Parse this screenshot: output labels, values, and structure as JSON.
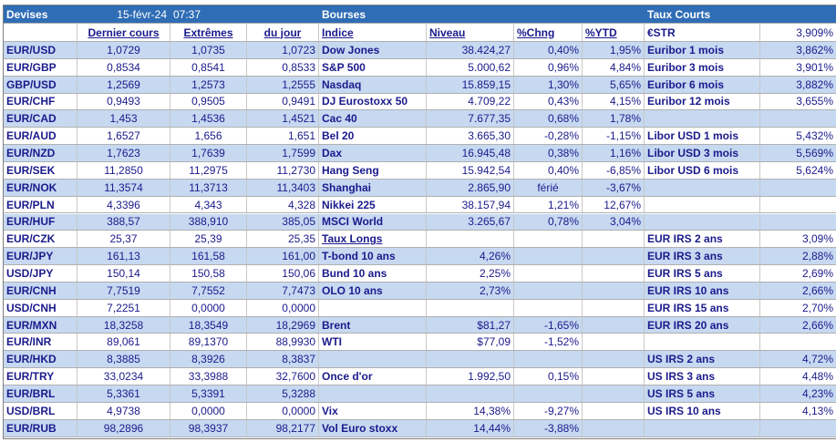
{
  "title_row": {
    "devises_label": "Devises",
    "date": "15-févr-24",
    "time": "07:37",
    "bourses_label": "Bourses",
    "taux_courts_label": "Taux Courts"
  },
  "headers": {
    "dernier_cours": "Dernier cours",
    "extremes": "Extrêmes",
    "du_jour": "du jour",
    "indice": "Indice",
    "niveau": "Niveau",
    "pct_chng": "%Chng",
    "pct_ytd": "%YTD",
    "estr_label": "€STR",
    "estr_value": "3,909%"
  },
  "rows": [
    {
      "pair": "EUR/USD",
      "last": "1,0729",
      "high": "1,0735",
      "low": "1,0723",
      "idx": "Dow Jones",
      "lvl": "38.424,27",
      "chg": "0,40%",
      "ytd": "1,95%",
      "rate": "Euribor 1 mois",
      "rval": "3,862%"
    },
    {
      "pair": "EUR/GBP",
      "last": "0,8534",
      "high": "0,8541",
      "low": "0,8533",
      "idx": "S&P 500",
      "lvl": "5.000,62",
      "chg": "0,96%",
      "ytd": "4,84%",
      "rate": "Euribor 3 mois",
      "rval": "3,901%"
    },
    {
      "pair": "GBP/USD",
      "last": "1,2569",
      "high": "1,2573",
      "low": "1,2555",
      "idx": "Nasdaq",
      "lvl": "15.859,15",
      "chg": "1,30%",
      "ytd": "5,65%",
      "rate": "Euribor 6 mois",
      "rval": "3,882%"
    },
    {
      "pair": "EUR/CHF",
      "last": "0,9493",
      "high": "0,9505",
      "low": "0,9491",
      "idx": "DJ Eurostoxx 50",
      "lvl": "4.709,22",
      "chg": "0,43%",
      "ytd": "4,15%",
      "rate": "Euribor 12 mois",
      "rval": "3,655%"
    },
    {
      "pair": "EUR/CAD",
      "last": "1,453",
      "high": "1,4536",
      "low": "1,4521",
      "idx": "Cac 40",
      "lvl": "7.677,35",
      "chg": "0,68%",
      "ytd": "1,78%",
      "rate": "",
      "rval": ""
    },
    {
      "pair": "EUR/AUD",
      "last": "1,6527",
      "high": "1,656",
      "low": "1,651",
      "idx": "Bel 20",
      "lvl": "3.665,30",
      "chg": "-0,28%",
      "ytd": "-1,15%",
      "rate": "Libor USD 1 mois",
      "rval": "5,432%"
    },
    {
      "pair": "EUR/NZD",
      "last": "1,7623",
      "high": "1,7639",
      "low": "1,7599",
      "idx": "Dax",
      "lvl": "16.945,48",
      "chg": "0,38%",
      "ytd": "1,16%",
      "rate": "Libor USD 3 mois",
      "rval": "5,569%"
    },
    {
      "pair": "EUR/SEK",
      "last": "11,2850",
      "high": "11,2975",
      "low": "11,2730",
      "idx": "Hang Seng",
      "lvl": "15.942,54",
      "chg": "0,40%",
      "ytd": "-6,85%",
      "rate": "Libor USD 6 mois",
      "rval": "5,624%"
    },
    {
      "pair": "EUR/NOK",
      "last": "11,3574",
      "high": "11,3713",
      "low": "11,3403",
      "idx": "Shanghai",
      "lvl": "2.865,90",
      "chg": "férié",
      "ytd": "-3,67%",
      "rate": "",
      "rval": ""
    },
    {
      "pair": "EUR/PLN",
      "last": "4,3396",
      "high": "4,343",
      "low": "4,328",
      "idx": "Nikkei 225",
      "lvl": "38.157,94",
      "chg": "1,21%",
      "ytd": "12,67%",
      "rate": "",
      "rval": ""
    },
    {
      "pair": "EUR/HUF",
      "last": "388,57",
      "high": "388,910",
      "low": "385,05",
      "idx": "MSCI World",
      "lvl": "3.265,67",
      "chg": "0,78%",
      "ytd": "3,04%",
      "rate": "",
      "rval": ""
    },
    {
      "pair": "EUR/CZK",
      "last": "25,37",
      "high": "25,39",
      "low": "25,35",
      "idx": "Taux Longs",
      "lvl": "",
      "chg": "",
      "ytd": "",
      "rate": "EUR IRS 2 ans",
      "rval": "3,09%"
    },
    {
      "pair": "EUR/JPY",
      "last": "161,13",
      "high": "161,58",
      "low": "161,00",
      "idx": "T-bond 10 ans",
      "lvl": "4,26%",
      "chg": "",
      "ytd": "",
      "rate": "EUR IRS 3 ans",
      "rval": "2,88%"
    },
    {
      "pair": "USD/JPY",
      "last": "150,14",
      "high": "150,58",
      "low": "150,06",
      "idx": "Bund 10 ans",
      "lvl": "2,25%",
      "chg": "",
      "ytd": "",
      "rate": "EUR IRS 5 ans",
      "rval": "2,69%"
    },
    {
      "pair": "EUR/CNH",
      "last": "7,7519",
      "high": "7,7552",
      "low": "7,7473",
      "idx": "OLO 10 ans",
      "lvl": "2,73%",
      "chg": "",
      "ytd": "",
      "rate": "EUR IRS 10 ans",
      "rval": "2,66%"
    },
    {
      "pair": "USD/CNH",
      "last": "7,2251",
      "high": "0,0000",
      "low": "0,0000",
      "idx": "",
      "lvl": "",
      "chg": "",
      "ytd": "",
      "rate": "EUR IRS 15 ans",
      "rval": "2,70%"
    },
    {
      "pair": "EUR/MXN",
      "last": "18,3258",
      "high": "18,3549",
      "low": "18,2969",
      "idx": "Brent",
      "lvl": "$81,27",
      "chg": "-1,65%",
      "ytd": "",
      "rate": "EUR IRS 20 ans",
      "rval": "2,66%"
    },
    {
      "pair": "EUR/INR",
      "last": "89,061",
      "high": "89,1370",
      "low": "88,9930",
      "idx": "WTI",
      "lvl": "$77,09",
      "chg": "-1,52%",
      "ytd": "",
      "rate": "",
      "rval": ""
    },
    {
      "pair": "EUR/HKD",
      "last": "8,3885",
      "high": "8,3926",
      "low": "8,3837",
      "idx": "",
      "lvl": "",
      "chg": "",
      "ytd": "",
      "rate": "US IRS 2 ans",
      "rval": "4,72%"
    },
    {
      "pair": "EUR/TRY",
      "last": "33,0234",
      "high": "33,3988",
      "low": "32,7600",
      "idx": "Once d'or",
      "lvl": "1.992,50",
      "chg": "0,15%",
      "ytd": "",
      "rate": "US IRS 3 ans",
      "rval": "4,48%"
    },
    {
      "pair": "EUR/BRL",
      "last": "5,3361",
      "high": "5,3391",
      "low": "5,3288",
      "idx": "",
      "lvl": "",
      "chg": "",
      "ytd": "",
      "rate": "US IRS 5 ans",
      "rval": "4,23%"
    },
    {
      "pair": "USD/BRL",
      "last": "4,9738",
      "high": "0,0000",
      "low": "0,0000",
      "idx": "Vix",
      "lvl": "14,38%",
      "chg": "-9,27%",
      "ytd": "",
      "rate": "US IRS 10 ans",
      "rval": "4,13%"
    },
    {
      "pair": "EUR/RUB",
      "last": "98,2896",
      "high": "98,3937",
      "low": "98,2177",
      "idx": "Vol Euro stoxx",
      "lvl": "14,44%",
      "chg": "-3,88%",
      "ytd": "",
      "rate": "",
      "rval": ""
    }
  ]
}
